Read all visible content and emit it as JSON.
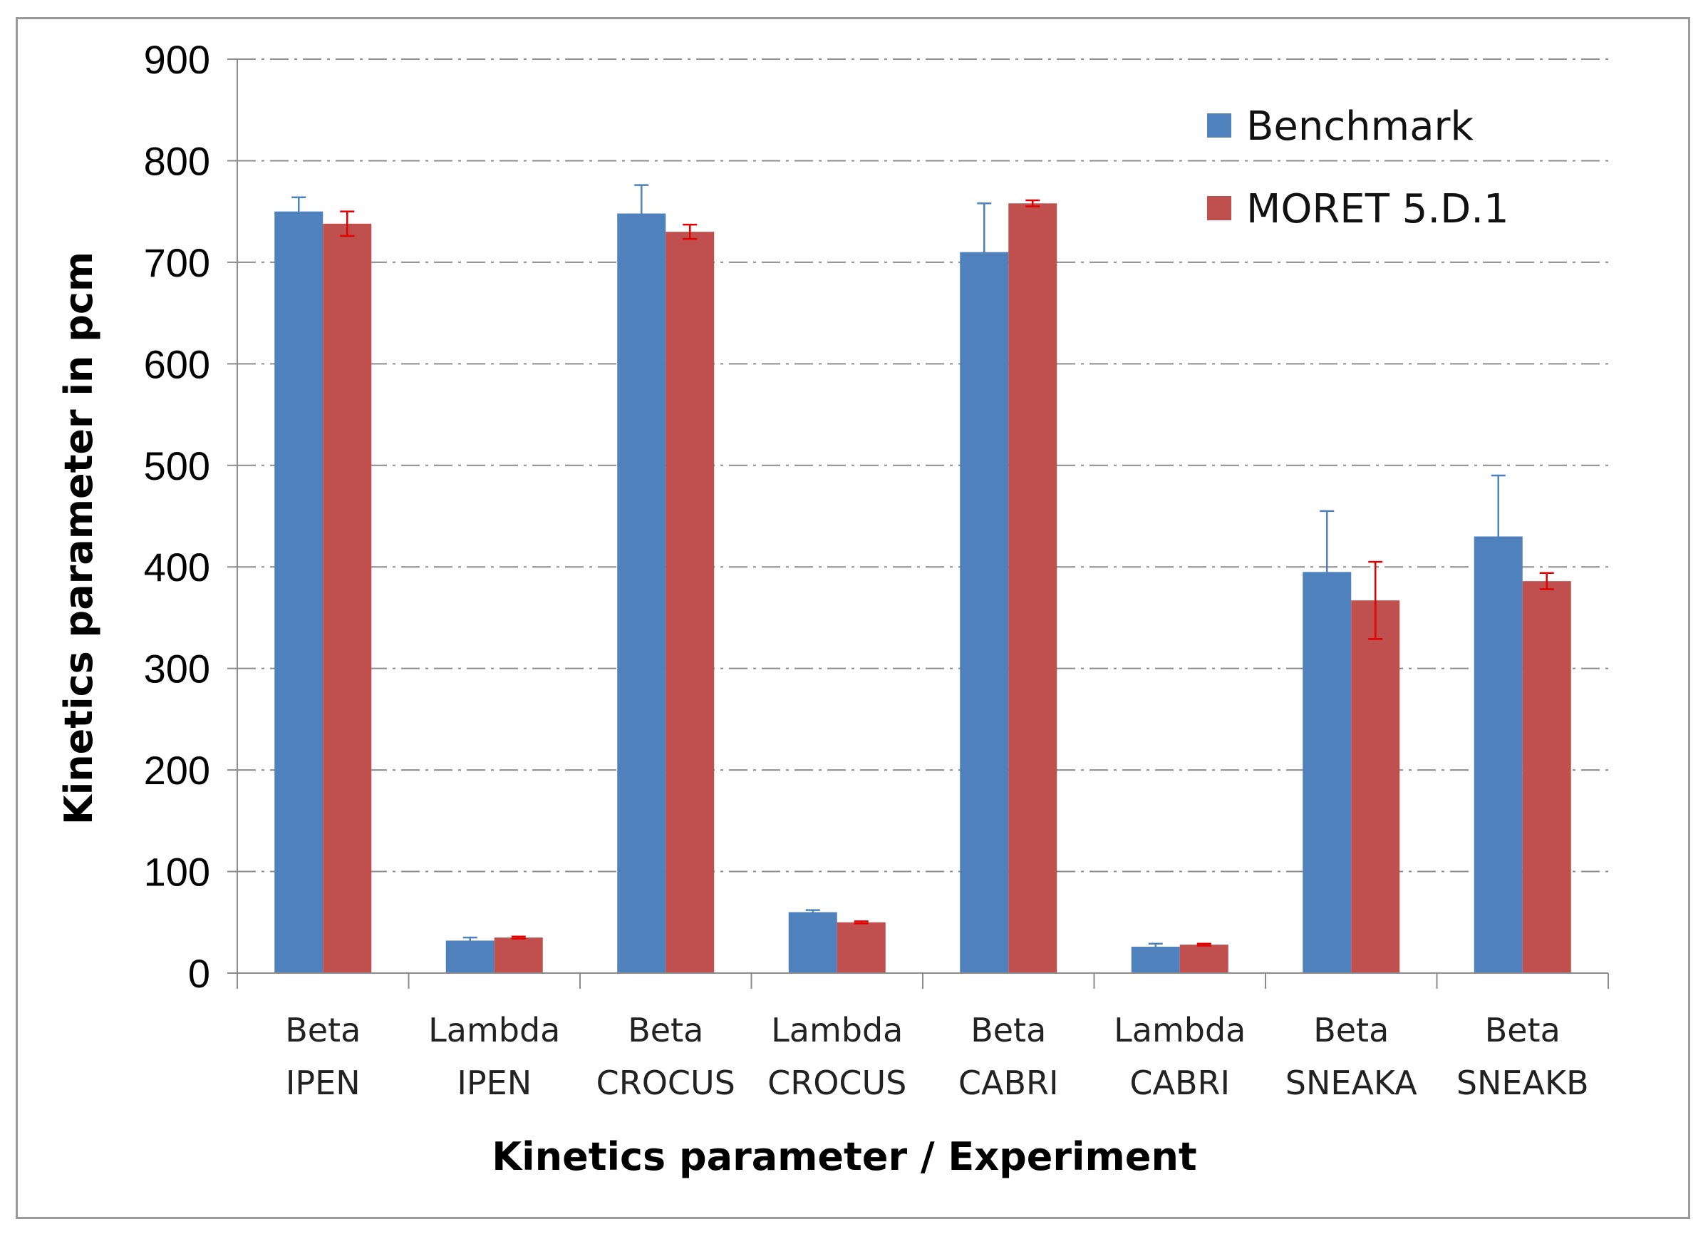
{
  "chart_data": {
    "type": "bar",
    "title": "",
    "xlabel": "Kinetics parameter  / Experiment",
    "ylabel": "Kinetics parameter  in pcm",
    "ylim": [
      0,
      900
    ],
    "yticks": [
      0,
      100,
      200,
      300,
      400,
      500,
      600,
      700,
      800,
      900
    ],
    "grid": true,
    "legend_position": "top-right",
    "categories": [
      [
        "Beta",
        "IPEN"
      ],
      [
        "Lambda",
        "IPEN"
      ],
      [
        "Beta",
        "CROCUS"
      ],
      [
        "Lambda",
        "CROCUS"
      ],
      [
        "Beta",
        "CABRI"
      ],
      [
        "Lambda",
        "CABRI"
      ],
      [
        "Beta",
        "SNEAKA"
      ],
      [
        "Beta",
        "SNEAKB"
      ]
    ],
    "series": [
      {
        "name": "Benchmark",
        "color": "#4F81BD",
        "error_color": "#4F81BD",
        "values": [
          750,
          32,
          748,
          60,
          710,
          26,
          395,
          430
        ],
        "errors": [
          14,
          3,
          28,
          2,
          48,
          3,
          60,
          60
        ]
      },
      {
        "name": "MORET 5.D.1",
        "color": "#C0504D",
        "error_color": "#E00000",
        "values": [
          738,
          35,
          730,
          50,
          758,
          28,
          367,
          386
        ],
        "errors": [
          12,
          1,
          7,
          1,
          3,
          1,
          38,
          8
        ]
      }
    ]
  }
}
